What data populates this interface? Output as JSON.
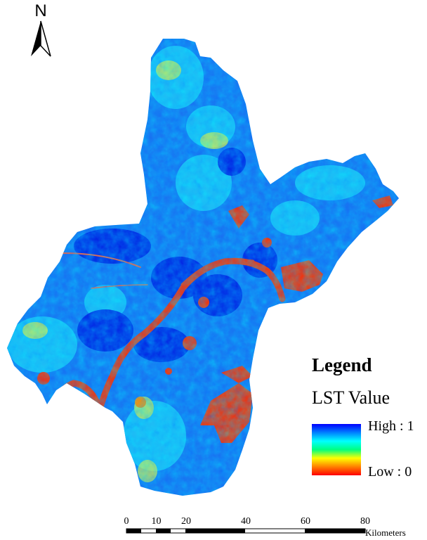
{
  "north_arrow": {
    "label": "N",
    "icon": "north-arrow-icon"
  },
  "legend": {
    "title": "Legend",
    "subtitle": "LST Value",
    "high_label": "High : 1",
    "low_label": "Low : 0",
    "ramp_colors": [
      "#0000ff",
      "#0080ff",
      "#00ffff",
      "#00ff80",
      "#ffff00",
      "#ff8000",
      "#ff0000"
    ]
  },
  "scale_bar": {
    "ticks": [
      "0",
      "10",
      "20",
      "40",
      "60",
      "80"
    ],
    "units": "Kilometers"
  },
  "map": {
    "region_fill": "#1a6ef0",
    "water_color": "#ff2a00",
    "hotspot_color": "#ff2a00",
    "warm_color": "#ffd000",
    "cool_color": "#00ccff",
    "deep_color": "#0000e6"
  }
}
